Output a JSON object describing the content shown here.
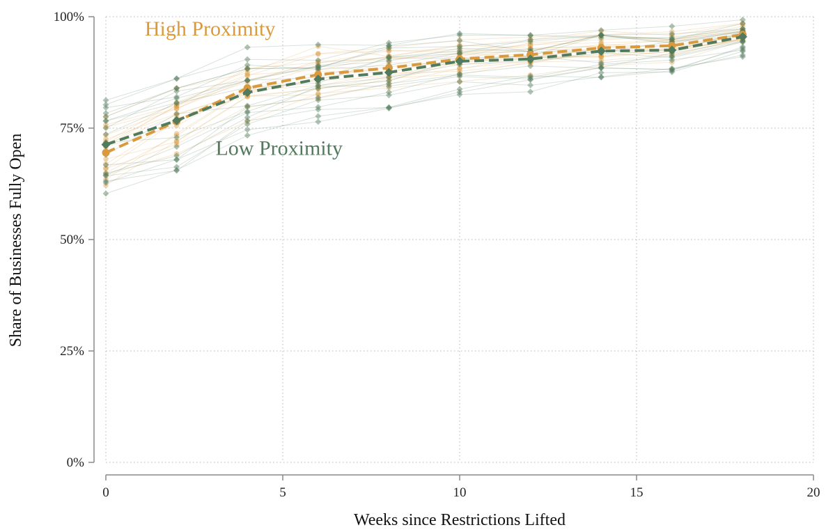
{
  "chart_data": {
    "type": "line",
    "xlabel": "Weeks since Restrictions Lifted",
    "ylabel": "Share of Businesses Fully Open",
    "xlim": [
      0,
      20
    ],
    "ylim": [
      0,
      100
    ],
    "xticks": [
      0,
      5,
      10,
      15,
      20
    ],
    "yticks": [
      0,
      25,
      50,
      75,
      100
    ],
    "xtick_labels": [
      "0",
      "5",
      "10",
      "15",
      "20"
    ],
    "ytick_labels": [
      "0%",
      "25%",
      "50%",
      "75%",
      "100%"
    ],
    "grid": "dotted",
    "x": [
      0,
      2,
      4,
      6,
      8,
      10,
      12,
      14,
      16,
      18
    ],
    "series": [
      {
        "name": "High Proximity",
        "color": "#D99A3F",
        "marker": "circle",
        "line": "dashed",
        "values": [
          69.5,
          76.5,
          84.0,
          87.0,
          88.5,
          90.5,
          91.5,
          93.0,
          93.5,
          96.0
        ],
        "spread": [
          6.5,
          5.5,
          4.5,
          4.0,
          3.5,
          3.2,
          3.0,
          2.6,
          2.4,
          1.6
        ]
      },
      {
        "name": "Low Proximity",
        "color": "#527A5C",
        "marker": "diamond",
        "line": "dashed",
        "values": [
          71.3,
          76.7,
          83.0,
          86.0,
          87.5,
          90.0,
          90.5,
          92.3,
          92.5,
          95.5
        ],
        "spread": [
          7.0,
          7.0,
          5.5,
          5.0,
          4.5,
          4.0,
          3.8,
          3.4,
          3.4,
          2.4
        ]
      }
    ],
    "annotations": [
      {
        "text": "High Proximity",
        "x": 1.1,
        "y": 95.8,
        "color": "#D99A3F"
      },
      {
        "text": "Low Proximity",
        "x": 3.1,
        "y": 69.0,
        "color": "#527A5C"
      }
    ],
    "background_lines_per_series": 18
  }
}
